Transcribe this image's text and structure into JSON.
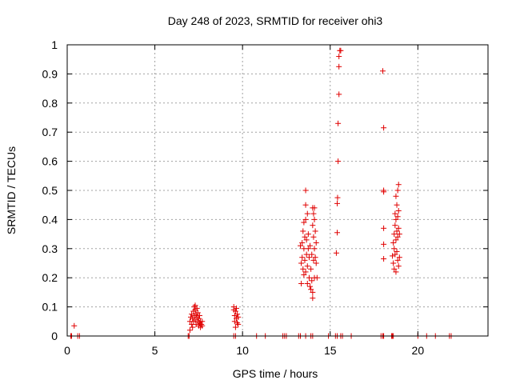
{
  "chart_data": {
    "type": "scatter",
    "title": "Day 248 of 2023, SRMTID for receiver ohi3",
    "xlabel": "GPS time / hours",
    "ylabel": "SRMTID / TECUs",
    "xlim": [
      0,
      24
    ],
    "ylim": [
      0,
      1
    ],
    "xticks": [
      0,
      5,
      10,
      15,
      20
    ],
    "xtick_labels": [
      "0",
      "5",
      "10",
      "15",
      "20"
    ],
    "yticks": [
      0,
      0.1,
      0.2,
      0.3,
      0.4,
      0.5,
      0.6,
      0.7,
      0.8,
      0.9,
      1
    ],
    "ytick_labels": [
      "0",
      "0.1",
      "0.2",
      "0.3",
      "0.4",
      "0.5",
      "0.6",
      "0.7",
      "0.8",
      "0.9",
      "1"
    ],
    "grid": true,
    "marker": "+",
    "marker_color": "#e00000",
    "series": [
      {
        "name": "SRMTID",
        "points": [
          [
            0.2,
            0.0
          ],
          [
            0.25,
            0.0
          ],
          [
            0.4,
            0.035
          ],
          [
            0.6,
            0.0
          ],
          [
            0.7,
            0.0
          ],
          [
            6.9,
            0.0
          ],
          [
            6.95,
            0.0
          ],
          [
            7.0,
            0.02
          ],
          [
            7.0,
            0.05
          ],
          [
            7.05,
            0.065
          ],
          [
            7.1,
            0.04
          ],
          [
            7.1,
            0.075
          ],
          [
            7.15,
            0.03
          ],
          [
            7.15,
            0.06
          ],
          [
            7.2,
            0.05
          ],
          [
            7.2,
            0.085
          ],
          [
            7.25,
            0.1
          ],
          [
            7.25,
            0.07
          ],
          [
            7.3,
            0.105
          ],
          [
            7.3,
            0.09
          ],
          [
            7.3,
            0.055
          ],
          [
            7.35,
            0.075
          ],
          [
            7.35,
            0.04
          ],
          [
            7.4,
            0.095
          ],
          [
            7.4,
            0.065
          ],
          [
            7.45,
            0.08
          ],
          [
            7.45,
            0.05
          ],
          [
            7.5,
            0.06
          ],
          [
            7.5,
            0.035
          ],
          [
            7.55,
            0.07
          ],
          [
            7.55,
            0.045
          ],
          [
            7.6,
            0.05
          ],
          [
            7.6,
            0.03
          ],
          [
            7.65,
            0.04
          ],
          [
            7.7,
            0.05
          ],
          [
            7.7,
            0.035
          ],
          [
            9.5,
            0.1
          ],
          [
            9.5,
            0.09
          ],
          [
            9.55,
            0.07
          ],
          [
            9.55,
            0.05
          ],
          [
            9.6,
            0.085
          ],
          [
            9.6,
            0.03
          ],
          [
            9.65,
            0.095
          ],
          [
            9.65,
            0.06
          ],
          [
            9.7,
            0.075
          ],
          [
            9.7,
            0.045
          ],
          [
            9.75,
            0.065
          ],
          [
            9.75,
            0.04
          ],
          [
            9.5,
            0.0
          ],
          [
            9.6,
            0.0
          ],
          [
            10.8,
            0.0
          ],
          [
            11.3,
            0.0
          ],
          [
            12.3,
            0.0
          ],
          [
            12.4,
            0.0
          ],
          [
            12.5,
            0.0
          ],
          [
            13.2,
            0.0
          ],
          [
            13.3,
            0.0
          ],
          [
            13.3,
            0.31
          ],
          [
            13.35,
            0.25
          ],
          [
            13.35,
            0.18
          ],
          [
            13.4,
            0.32
          ],
          [
            13.4,
            0.27
          ],
          [
            13.45,
            0.23
          ],
          [
            13.45,
            0.36
          ],
          [
            13.5,
            0.39
          ],
          [
            13.5,
            0.21
          ],
          [
            13.5,
            0.3
          ],
          [
            13.55,
            0.34
          ],
          [
            13.55,
            0.26
          ],
          [
            13.6,
            0.5
          ],
          [
            13.6,
            0.45
          ],
          [
            13.6,
            0.4
          ],
          [
            13.6,
            0.22
          ],
          [
            13.65,
            0.33
          ],
          [
            13.65,
            0.28
          ],
          [
            13.7,
            0.42
          ],
          [
            13.7,
            0.18
          ],
          [
            13.7,
            0.24
          ],
          [
            13.75,
            0.3
          ],
          [
            13.75,
            0.35
          ],
          [
            13.8,
            0.2
          ],
          [
            13.8,
            0.27
          ],
          [
            13.85,
            0.31
          ],
          [
            13.85,
            0.17
          ],
          [
            13.9,
            0.23
          ],
          [
            13.9,
            0.16
          ],
          [
            13.95,
            0.19
          ],
          [
            13.95,
            0.28
          ],
          [
            14.0,
            0.44
          ],
          [
            14.0,
            0.38
          ],
          [
            14.0,
            0.15
          ],
          [
            14.0,
            0.13
          ],
          [
            14.05,
            0.42
          ],
          [
            14.05,
            0.34
          ],
          [
            14.05,
            0.26
          ],
          [
            14.1,
            0.44
          ],
          [
            14.1,
            0.4
          ],
          [
            14.1,
            0.3
          ],
          [
            14.1,
            0.2
          ],
          [
            14.15,
            0.36
          ],
          [
            14.15,
            0.27
          ],
          [
            14.2,
            0.32
          ],
          [
            14.2,
            0.25
          ],
          [
            14.25,
            0.2
          ],
          [
            13.6,
            0.0
          ],
          [
            13.9,
            0.0
          ],
          [
            14.0,
            0.0
          ],
          [
            14.9,
            0.0
          ],
          [
            15.3,
            0.0
          ],
          [
            15.4,
            0.0
          ],
          [
            15.35,
            0.285
          ],
          [
            15.4,
            0.355
          ],
          [
            15.4,
            0.455
          ],
          [
            15.42,
            0.475
          ],
          [
            15.45,
            0.6
          ],
          [
            15.45,
            0.73
          ],
          [
            15.5,
            0.83
          ],
          [
            15.5,
            0.925
          ],
          [
            15.5,
            0.96
          ],
          [
            15.55,
            0.98
          ],
          [
            15.6,
            0.98
          ],
          [
            15.6,
            0.0
          ],
          [
            15.7,
            0.0
          ],
          [
            16.2,
            0.0
          ],
          [
            17.9,
            0.0
          ],
          [
            18.0,
            0.0
          ],
          [
            18.05,
            0.0
          ],
          [
            18.5,
            0.0
          ],
          [
            18.55,
            0.0
          ],
          [
            18.6,
            0.0
          ],
          [
            18.0,
            0.91
          ],
          [
            18.05,
            0.715
          ],
          [
            18.05,
            0.5
          ],
          [
            18.05,
            0.495
          ],
          [
            18.05,
            0.37
          ],
          [
            18.05,
            0.315
          ],
          [
            18.05,
            0.265
          ],
          [
            18.55,
            0.275
          ],
          [
            18.6,
            0.32
          ],
          [
            18.6,
            0.25
          ],
          [
            18.65,
            0.35
          ],
          [
            18.65,
            0.3
          ],
          [
            18.65,
            0.23
          ],
          [
            18.7,
            0.42
          ],
          [
            18.7,
            0.38
          ],
          [
            18.7,
            0.28
          ],
          [
            18.75,
            0.48
          ],
          [
            18.75,
            0.4
          ],
          [
            18.75,
            0.33
          ],
          [
            18.75,
            0.22
          ],
          [
            18.8,
            0.45
          ],
          [
            18.8,
            0.36
          ],
          [
            18.8,
            0.29
          ],
          [
            18.85,
            0.5
          ],
          [
            18.85,
            0.41
          ],
          [
            18.85,
            0.34
          ],
          [
            18.85,
            0.26
          ],
          [
            18.9,
            0.52
          ],
          [
            18.9,
            0.43
          ],
          [
            18.9,
            0.37
          ],
          [
            18.9,
            0.24
          ],
          [
            18.95,
            0.35
          ],
          [
            18.95,
            0.27
          ],
          [
            20.0,
            0.0
          ],
          [
            20.5,
            0.0
          ],
          [
            21.0,
            0.0
          ],
          [
            21.8,
            0.0
          ],
          [
            21.9,
            0.0
          ]
        ]
      }
    ]
  }
}
